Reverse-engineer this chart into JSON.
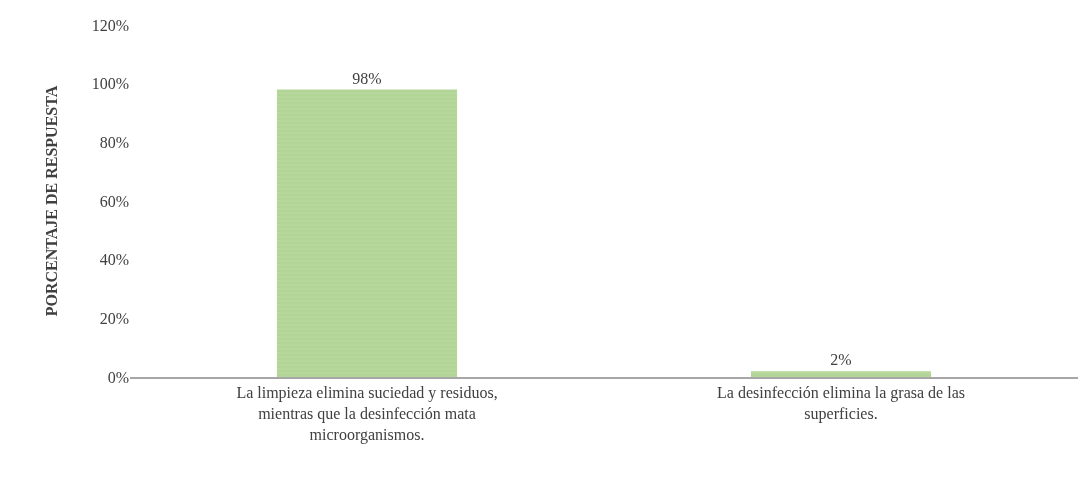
{
  "chart_data": {
    "type": "bar",
    "ylabel": "PORCENTAJE DE RESPUESTA",
    "categories": [
      "La limpieza elimina suciedad y residuos, mientras que la desinfección mata microorganismos.",
      "La desinfección elimina la grasa de las superficies."
    ],
    "values": [
      98,
      2
    ],
    "value_labels": [
      "98%",
      "2%"
    ],
    "color": "#b7d89c",
    "ylim": [
      0,
      120
    ],
    "yticks": [
      {
        "value": 0,
        "label": "0%"
      },
      {
        "value": 20,
        "label": "20%"
      },
      {
        "value": 40,
        "label": "40%"
      },
      {
        "value": 60,
        "label": "60%"
      },
      {
        "value": 80,
        "label": "80%"
      },
      {
        "value": 100,
        "label": "100%"
      },
      {
        "value": 120,
        "label": "120%"
      }
    ],
    "legend": false
  }
}
